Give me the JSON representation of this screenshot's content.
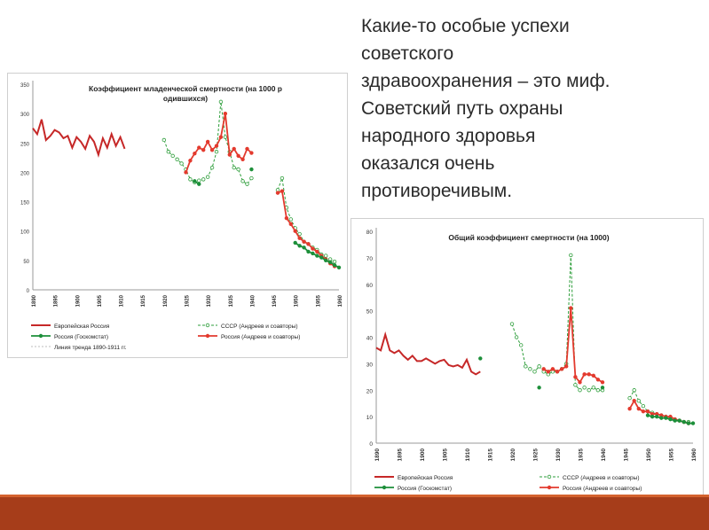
{
  "headline": "Какие-то особые успехи\nсоветского\nздравоохранения – это миф.\nСоветский путь охраны\nнародного здоровья\nоказался очень\nпротиворечивым.",
  "colors": {
    "strip": "#a63d1a",
    "trend": "#bdbdbd",
    "soviet": "#2e9e3b",
    "andreev": "#e33a2e",
    "goskomstat": "#1d8f3a",
    "euro": "#c62828"
  },
  "chart_data": [
    {
      "type": "line",
      "title": "Коэффициент младенческой смертности (на 1000 родившихся)",
      "xlim": [
        1890,
        1960
      ],
      "ylim": [
        0,
        350
      ],
      "yticks": [
        0,
        50,
        100,
        150,
        200,
        250,
        300,
        350
      ],
      "xticks": [
        1890,
        1895,
        1900,
        1905,
        1910,
        1915,
        1920,
        1925,
        1930,
        1935,
        1940,
        1945,
        1950,
        1955,
        1960
      ],
      "legend": [
        "Европейская Россия",
        "СССР (Андреев и соавторы)",
        "Россия (Госкомстат)",
        "Россия (Андреев и соавторы)",
        "Линия тренда 1890-1911 гг."
      ],
      "series": [
        {
          "name": "Европейская Россия",
          "style": "euro",
          "x": [
            1890,
            1891,
            1892,
            1893,
            1894,
            1895,
            1896,
            1897,
            1898,
            1899,
            1900,
            1901,
            1902,
            1903,
            1904,
            1905,
            1906,
            1907,
            1908,
            1909,
            1910,
            1911
          ],
          "y": [
            275,
            265,
            290,
            255,
            262,
            272,
            268,
            258,
            262,
            242,
            260,
            252,
            240,
            262,
            252,
            230,
            258,
            242,
            265,
            245,
            260,
            240
          ]
        },
        {
          "name": "СССР (Андреев и соавторы)",
          "style": "soviet",
          "x": [
            1920,
            1921,
            1922,
            1923,
            1924,
            1925,
            1926,
            1927,
            1928,
            1929,
            1930,
            1931,
            1932,
            1933,
            1934,
            1935,
            1936,
            1937,
            1938,
            1939,
            1940,
            1946,
            1947,
            1948,
            1949,
            1950,
            1951,
            1952,
            1953,
            1954,
            1955,
            1956,
            1957,
            1958,
            1959
          ],
          "y": [
            255,
            235,
            228,
            222,
            215,
            205,
            188,
            183,
            186,
            188,
            192,
            208,
            235,
            320,
            260,
            235,
            208,
            205,
            185,
            180,
            190,
            170,
            190,
            140,
            120,
            105,
            95,
            82,
            78,
            72,
            68,
            60,
            58,
            52,
            48
          ]
        },
        {
          "name": "Россия (Андреев и соавторы)",
          "style": "andreev",
          "x": [
            1925,
            1926,
            1927,
            1928,
            1929,
            1930,
            1931,
            1932,
            1933,
            1934,
            1935,
            1936,
            1937,
            1938,
            1939,
            1940,
            1946,
            1947,
            1948,
            1949,
            1950,
            1951,
            1952,
            1953,
            1954,
            1955,
            1956,
            1957,
            1958,
            1959
          ],
          "y": [
            200,
            220,
            232,
            242,
            238,
            252,
            238,
            245,
            260,
            300,
            230,
            240,
            228,
            222,
            240,
            233,
            165,
            168,
            122,
            112,
            100,
            88,
            82,
            78,
            70,
            65,
            58,
            52,
            45,
            40
          ]
        },
        {
          "name": "Россия (Госкомстат)",
          "style": "goskomstat",
          "x": [
            1927,
            1928,
            1940,
            1950,
            1951,
            1952,
            1953,
            1954,
            1955,
            1956,
            1957,
            1958,
            1959,
            1960
          ],
          "y": [
            185,
            180,
            205,
            80,
            75,
            72,
            65,
            62,
            58,
            55,
            50,
            47,
            42,
            38
          ]
        },
        {
          "name": "Линия тренда 1890-1911 гг.",
          "style": "trend",
          "x": [
            1910,
            1960
          ],
          "y": [
            240,
            138
          ]
        }
      ]
    },
    {
      "type": "line",
      "title": "Общий коэффициент смертности (на 1000)",
      "xlim": [
        1890,
        1960
      ],
      "ylim": [
        0,
        80
      ],
      "yticks": [
        0,
        10,
        20,
        30,
        40,
        50,
        60,
        70,
        80
      ],
      "xticks": [
        1890,
        1895,
        1900,
        1905,
        1910,
        1915,
        1920,
        1925,
        1930,
        1935,
        1940,
        1945,
        1950,
        1955,
        1960
      ],
      "legend": [
        "Европейская Россия",
        "СССР (Андреев и соавторы)",
        "Россия (Госкомстат)",
        "Россия (Андреев и соавторы)",
        "Линия тренда 1890-1913 гг."
      ],
      "series": [
        {
          "name": "Европейская Россия",
          "style": "euro",
          "x": [
            1890,
            1891,
            1892,
            1893,
            1894,
            1895,
            1896,
            1897,
            1898,
            1899,
            1900,
            1901,
            1902,
            1903,
            1904,
            1905,
            1906,
            1907,
            1908,
            1909,
            1910,
            1911,
            1912,
            1913
          ],
          "y": [
            36,
            35,
            41,
            35,
            34,
            35,
            33,
            31.5,
            33,
            31,
            31,
            32,
            31,
            30,
            31,
            31.5,
            29.5,
            29,
            29.5,
            28.5,
            31.5,
            27,
            26,
            27
          ]
        },
        {
          "name": "СССР (Андреев и соавторы)",
          "style": "soviet",
          "x": [
            1920,
            1921,
            1922,
            1923,
            1924,
            1925,
            1926,
            1927,
            1928,
            1929,
            1930,
            1931,
            1932,
            1933,
            1934,
            1935,
            1936,
            1937,
            1938,
            1939,
            1940,
            1946,
            1947,
            1948,
            1949,
            1950,
            1951,
            1952,
            1953,
            1954,
            1955,
            1956,
            1957,
            1958,
            1959
          ],
          "y": [
            45,
            40,
            37,
            29,
            28,
            27,
            29,
            27,
            26,
            27,
            27,
            28,
            30,
            71,
            22,
            20,
            21,
            20,
            21,
            20,
            20,
            17,
            20,
            16,
            14,
            12,
            11.5,
            11,
            10.5,
            10,
            9.5,
            9,
            8.5,
            8,
            8
          ]
        },
        {
          "name": "Россия (Андреев и соавторы)",
          "style": "andreev",
          "x": [
            1927,
            1928,
            1929,
            1930,
            1931,
            1932,
            1933,
            1934,
            1935,
            1936,
            1937,
            1938,
            1939,
            1940,
            1946,
            1947,
            1948,
            1949,
            1950,
            1951,
            1952,
            1953,
            1954,
            1955,
            1956,
            1957,
            1958,
            1959
          ],
          "y": [
            28,
            27,
            28,
            27,
            28,
            29,
            51,
            25,
            23,
            26,
            26,
            25.5,
            24,
            23,
            13,
            16,
            13,
            12,
            12,
            11,
            11,
            10.5,
            10,
            10,
            9,
            8.5,
            8,
            7.5
          ]
        },
        {
          "name": "Россия (Госкомстат)",
          "style": "goskomstat",
          "x": [
            1913,
            1926,
            1940,
            1950,
            1951,
            1952,
            1953,
            1954,
            1955,
            1956,
            1957,
            1958,
            1959,
            1960
          ],
          "y": [
            32,
            21,
            21,
            10.5,
            10,
            10,
            9.5,
            9.5,
            9,
            8.5,
            8.5,
            8,
            7.5,
            7.5
          ]
        },
        {
          "name": "Линия тренда 1890-1913 гг.",
          "style": "trend",
          "x": [
            1913,
            1960
          ],
          "y": [
            26,
            7
          ]
        }
      ]
    }
  ]
}
